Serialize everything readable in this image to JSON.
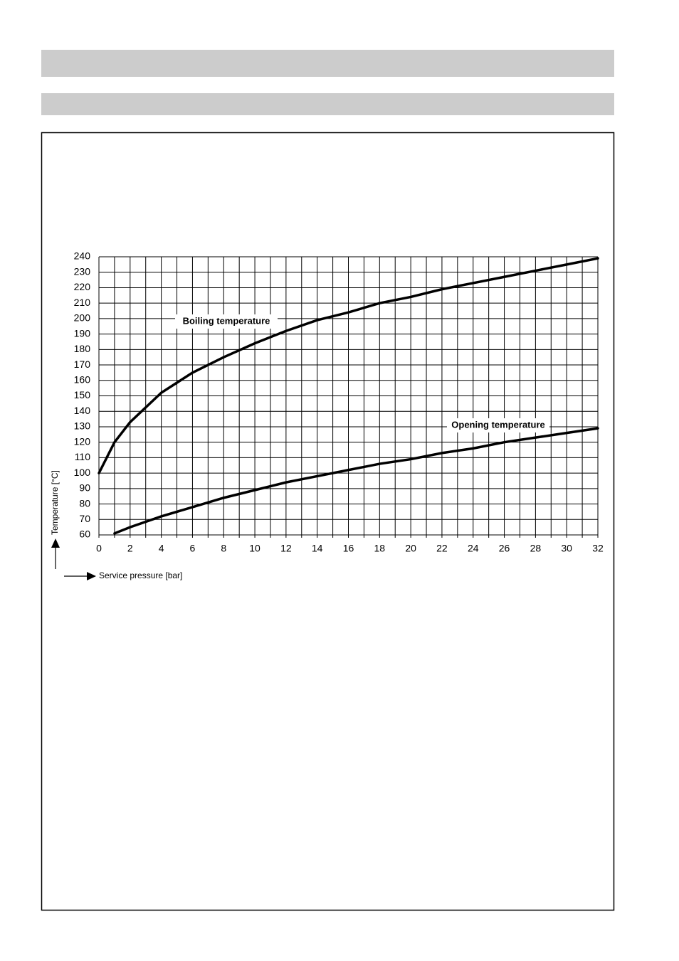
{
  "chart_data": {
    "type": "line",
    "x_label": "Service pressure [bar]",
    "y_label": "Temperature [°C]",
    "x": [
      0,
      1,
      2,
      4,
      6,
      8,
      10,
      12,
      14,
      16,
      18,
      20,
      22,
      24,
      26,
      28,
      30,
      32
    ],
    "series": [
      {
        "name": "Boiling temperature",
        "color": "#000000",
        "values": [
          100,
          120,
          133,
          152,
          165,
          175,
          184,
          192,
          199,
          204,
          210,
          214,
          219,
          223,
          227,
          231,
          235,
          239
        ]
      },
      {
        "name": "Opening temperature",
        "color": "#000000",
        "values": [
          null,
          61,
          65,
          72,
          78,
          84,
          89,
          94,
          98,
          102,
          106,
          109,
          113,
          116,
          120,
          123,
          126,
          129
        ]
      }
    ],
    "xlim": [
      0,
      32
    ],
    "ylim": [
      60,
      240
    ],
    "xticks": [
      0,
      2,
      4,
      6,
      8,
      10,
      12,
      14,
      16,
      18,
      20,
      22,
      24,
      26,
      28,
      30,
      32
    ],
    "yticks": [
      60,
      70,
      80,
      90,
      100,
      110,
      120,
      130,
      140,
      150,
      160,
      170,
      180,
      190,
      200,
      210,
      220,
      230,
      240
    ],
    "grid": true
  }
}
